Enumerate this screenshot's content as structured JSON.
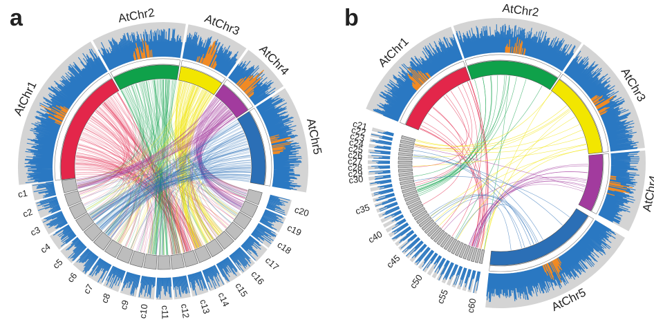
{
  "panels": [
    {
      "label": "a",
      "chromosomes": [
        {
          "name": "AtChr1",
          "color": "#e3264a"
        },
        {
          "name": "AtChr2",
          "color": "#0fa14a"
        },
        {
          "name": "AtChr3",
          "color": "#f2e600"
        },
        {
          "name": "AtChr4",
          "color": "#a23b9e"
        },
        {
          "name": "AtChr5",
          "color": "#2b6fb6"
        }
      ],
      "contigs": [
        "c1",
        "c2",
        "c3",
        "c4",
        "c5",
        "c6",
        "c7",
        "c8",
        "c9",
        "c10",
        "c11",
        "c12",
        "c13",
        "c14",
        "c15",
        "c16",
        "c17",
        "c18",
        "c19",
        "c20"
      ]
    },
    {
      "label": "b",
      "chromosomes": [
        {
          "name": "AtChr1",
          "color": "#e3264a"
        },
        {
          "name": "AtChr2",
          "color": "#0fa14a"
        },
        {
          "name": "AtChr3",
          "color": "#f2e600"
        },
        {
          "name": "AtChr4",
          "color": "#a23b9e"
        },
        {
          "name": "AtChr5",
          "color": "#2b6fb6"
        }
      ],
      "contigs": [
        "c21",
        "c22",
        "c23",
        "c24",
        "c25",
        "c26",
        "c27",
        "c28",
        "c29",
        "c30",
        null,
        null,
        null,
        null,
        "c35",
        null,
        null,
        null,
        null,
        "c40",
        null,
        null,
        null,
        null,
        "c45",
        null,
        null,
        null,
        null,
        "c50",
        null,
        null,
        null,
        null,
        "c55",
        null,
        null,
        null,
        null,
        "c60"
      ]
    }
  ]
}
